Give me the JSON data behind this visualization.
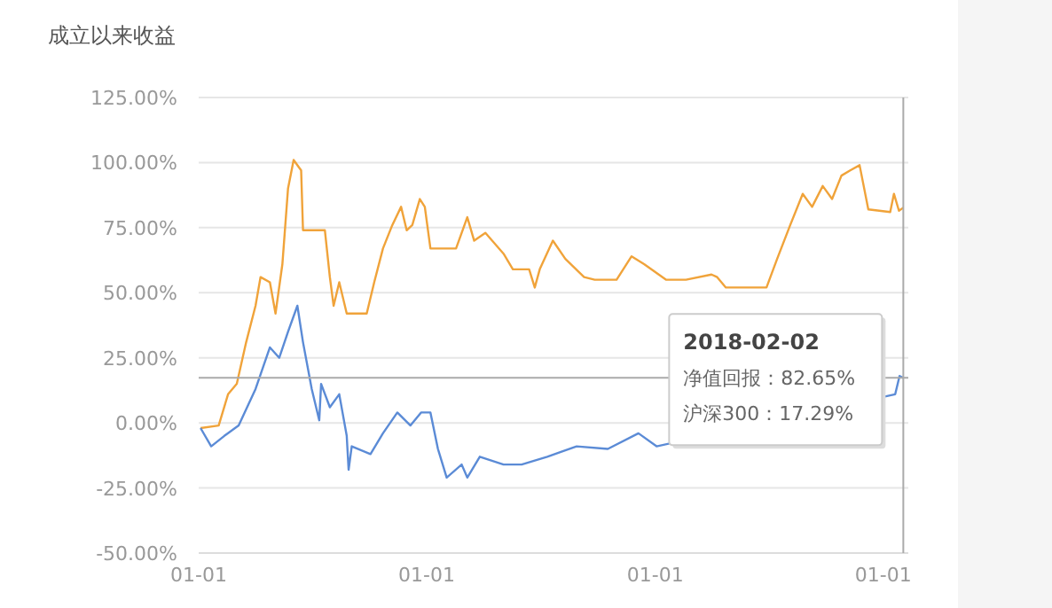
{
  "chart_data": {
    "type": "line",
    "title": "成立以来收益",
    "xlim": [
      "2015-01-01",
      "2018-02-10"
    ],
    "xticks": [
      {
        "value": "2015-01-01",
        "label": "01-01"
      },
      {
        "value": "2016-01-01",
        "label": "01-01"
      },
      {
        "value": "2017-01-01",
        "label": "01-01"
      },
      {
        "value": "2018-01-01",
        "label": "01-01"
      }
    ],
    "ylim": [
      -50,
      125
    ],
    "yticks": [
      {
        "value": -50,
        "label": "-50.00%"
      },
      {
        "value": -25,
        "label": "-25.00%"
      },
      {
        "value": 0,
        "label": "0.00%"
      },
      {
        "value": 25,
        "label": "25.00%"
      },
      {
        "value": 50,
        "label": "50.00%"
      },
      {
        "value": 75,
        "label": "75.00%"
      },
      {
        "value": 100,
        "label": "100.00%"
      },
      {
        "value": 125,
        "label": "125.00%"
      }
    ],
    "grid": "y",
    "marker": "none",
    "line_style": "solid",
    "series": [
      {
        "color": "#f0a33a",
        "x": [
          "2015-01-04",
          "2015-02-02",
          "2015-02-17",
          "2015-03-03",
          "2015-03-18",
          "2015-04-02",
          "2015-04-10",
          "2015-04-25",
          "2015-05-04",
          "2015-05-15",
          "2015-05-24",
          "2015-06-02",
          "2015-06-14",
          "2015-06-17",
          "2015-07-22",
          "2015-07-30",
          "2015-08-05",
          "2015-08-14",
          "2015-08-26",
          "2015-09-27",
          "2015-10-09",
          "2015-10-23",
          "2015-11-07",
          "2015-11-21",
          "2015-11-30",
          "2015-12-09",
          "2015-12-21",
          "2015-12-29",
          "2016-01-07",
          "2016-02-17",
          "2016-03-06",
          "2016-03-17",
          "2016-04-04",
          "2016-05-03",
          "2016-05-18",
          "2016-06-13",
          "2016-06-22",
          "2016-06-30",
          "2016-07-21",
          "2016-08-10",
          "2016-09-09",
          "2016-09-26",
          "2016-10-31",
          "2016-11-24",
          "2016-12-14",
          "2017-01-18",
          "2017-02-19",
          "2017-04-01",
          "2017-04-10",
          "2017-04-24",
          "2017-06-28",
          "2017-07-15",
          "2017-08-05",
          "2017-08-25",
          "2017-09-09",
          "2017-09-26",
          "2017-10-11",
          "2017-10-26",
          "2017-11-09",
          "2017-11-24",
          "2017-12-08",
          "2018-01-12",
          "2018-01-18",
          "2018-01-26",
          "2018-02-02"
        ],
        "values": [
          -2,
          -1,
          11,
          15,
          31,
          45,
          56,
          54,
          42,
          61,
          90,
          101,
          97,
          74,
          74,
          56,
          45,
          54,
          42,
          42,
          54,
          67,
          76,
          83,
          74,
          76,
          86,
          83,
          67,
          67,
          79,
          70,
          73,
          65,
          59,
          59,
          52,
          59,
          70,
          63,
          56,
          55,
          55,
          64,
          61,
          55,
          55,
          57,
          56,
          52,
          52,
          63,
          76,
          88,
          83,
          91,
          86,
          95,
          97,
          99,
          82,
          81,
          88,
          81.5,
          82.65
        ]
      },
      {
        "color": "#5b8bd6",
        "x": [
          "2015-01-04",
          "2015-01-21",
          "2015-02-11",
          "2015-03-06",
          "2015-04-02",
          "2015-04-25",
          "2015-05-10",
          "2015-05-24",
          "2015-06-08",
          "2015-06-17",
          "2015-07-01",
          "2015-07-13",
          "2015-07-16",
          "2015-07-30",
          "2015-08-14",
          "2015-08-26",
          "2015-08-29",
          "2015-09-03",
          "2015-10-03",
          "2015-10-23",
          "2015-11-15",
          "2015-12-06",
          "2015-12-23",
          "2016-01-07",
          "2016-01-19",
          "2016-02-02",
          "2016-02-26",
          "2016-03-06",
          "2016-03-26",
          "2016-05-03",
          "2016-06-01",
          "2016-07-12",
          "2016-08-28",
          "2016-10-17",
          "2016-12-05",
          "2017-01-03",
          "2018-01-20",
          "2018-01-27",
          "2018-02-02"
        ],
        "values": [
          -2,
          -9,
          -5,
          -1,
          13,
          29,
          25,
          35,
          45,
          31,
          13,
          1,
          15,
          6,
          11,
          -5,
          -18,
          -9,
          -12,
          -4,
          4,
          -1,
          4,
          4,
          -10,
          -21,
          -16,
          -21,
          -13,
          -16,
          -16,
          -13,
          -9,
          -10,
          -4,
          -9,
          11,
          18,
          17.29
        ]
      }
    ],
    "ref_lines": [
      {
        "axis": "y",
        "value": 17.29,
        "color": "#aaaaaa"
      },
      {
        "axis": "x",
        "value": "2018-02-02",
        "color": "#aaaaaa"
      }
    ],
    "annotations": [
      "2018-02-02",
      "净值回报：82.65%",
      "沪深300：17.29%"
    ]
  }
}
